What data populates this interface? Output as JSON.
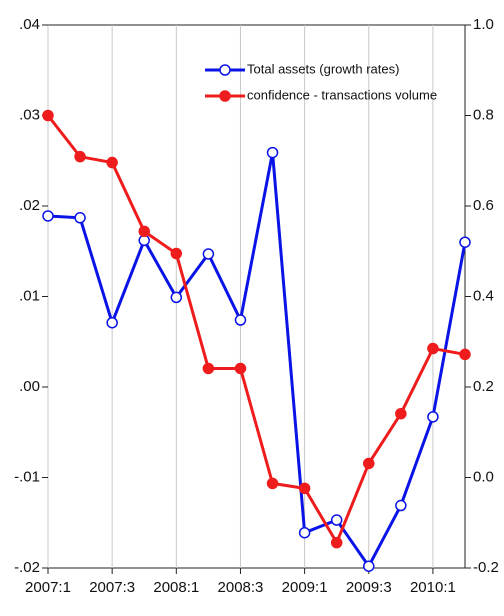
{
  "chart_data": {
    "type": "line",
    "categories": [
      "2007:1",
      null,
      "2007:3",
      null,
      "2008:1",
      null,
      "2008:3",
      null,
      "2009:1",
      null,
      "2009:3",
      null,
      "2010:1",
      null
    ],
    "series": [
      {
        "name": "Total assets (growth rates)",
        "color": "#0a14e6",
        "marker": "open",
        "axis": "y",
        "values": [
          0.0189,
          0.0187,
          0.0071,
          0.0162,
          0.0099,
          0.0147,
          0.0074,
          0.0259,
          -0.0161,
          -0.0147,
          -0.0198,
          -0.0131,
          -0.0033,
          0.016
        ]
      },
      {
        "name": "confidence - transactions volume",
        "color": "#ee1c1c",
        "marker": "filled",
        "axis": "y2",
        "values": [
          0.8,
          0.709,
          0.696,
          0.544,
          0.495,
          0.241,
          0.241,
          -0.013,
          -0.024,
          -0.144,
          0.031,
          0.141,
          0.285,
          0.272
        ]
      }
    ],
    "ylim": [
      -0.02,
      0.04
    ],
    "yticks": [
      {
        "value": 0.04,
        "label": ".04"
      },
      {
        "value": 0.03,
        "label": ".03"
      },
      {
        "value": 0.02,
        "label": ".02"
      },
      {
        "value": 0.01,
        "label": ".01"
      },
      {
        "value": 0,
        "label": ".00"
      },
      {
        "value": -0.01,
        "label": "-.01"
      },
      {
        "value": -0.02,
        "label": "-.02"
      }
    ],
    "y2lim": [
      -0.2,
      1.0
    ],
    "y2ticks": [
      {
        "value": 1.0,
        "label": "1.0"
      },
      0.8,
      0.6,
      0.4,
      0.2,
      {
        "value": 0,
        "label": "0.0"
      },
      -0.2
    ],
    "grid": true,
    "legend": "top-right"
  }
}
